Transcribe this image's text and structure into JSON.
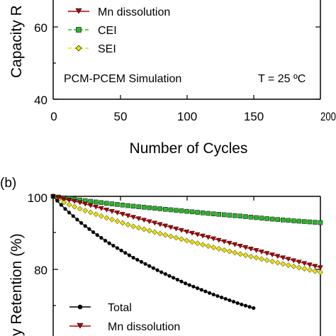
{
  "panel_a": {
    "y_axis_label_fragment": "Capacity R",
    "y_tick_labels": [
      "60",
      "40"
    ],
    "x_tick_labels": [
      "0",
      "50",
      "100",
      "150",
      "200"
    ],
    "x_axis_label": "Number of Cycles",
    "legend": [
      {
        "label": "Mn dissolution",
        "color": "#b00000",
        "marker": "down-triangle-icon",
        "line": "solid"
      },
      {
        "label": "CEI",
        "color": "#2bb52b",
        "marker": "square-icon",
        "line": "dashed"
      },
      {
        "label": "SEI",
        "color": "#e8e000",
        "marker": "diamond-icon",
        "line": "dashed"
      }
    ],
    "annotation_sim": "PCM-PCEM Simulation",
    "annotation_temp": "T = 25 ºC"
  },
  "panel_b": {
    "panel_label": "(b)",
    "y_axis_label_fragment": "y Retention (%)",
    "y_tick_labels": [
      "100",
      "80"
    ],
    "legend": [
      {
        "label": "Total",
        "color": "#000000",
        "marker": "circle-icon",
        "line": "solid"
      },
      {
        "label": "Mn dissolution",
        "color": "#b00000",
        "marker": "down-triangle-icon",
        "line": "solid"
      }
    ]
  },
  "chart_data": [
    {
      "type": "line",
      "panel": "a",
      "xlabel": "Number of Cycles",
      "ylabel": "Capacity R",
      "xlim": [
        0,
        200
      ],
      "ylim_visible": [
        40,
        68
      ],
      "x_ticks": [
        0,
        50,
        100,
        150,
        200
      ],
      "y_ticks": [
        40,
        60
      ],
      "series": [
        {
          "name": "Mn dissolution"
        },
        {
          "name": "CEI"
        },
        {
          "name": "SEI"
        }
      ],
      "annotations": [
        "PCM-PCEM Simulation",
        "T = 25 ºC"
      ]
    },
    {
      "type": "line",
      "panel": "b",
      "ylabel": "y Retention (%)",
      "xlim": [
        0,
        200
      ],
      "ylim_visible": [
        60,
        100
      ],
      "y_ticks": [
        80,
        100
      ],
      "series": [
        {
          "name": "Total",
          "color": "#000000",
          "x": [
            0,
            5,
            10,
            20,
            30,
            40,
            60,
            80,
            100,
            120,
            140,
            150
          ],
          "y": [
            100,
            98.0,
            96.2,
            93.0,
            90.2,
            87.6,
            83.2,
            79.4,
            76.0,
            73.1,
            70.5,
            69.4
          ]
        },
        {
          "name": "Mn dissolution",
          "color": "#b00000",
          "x": [
            0,
            20,
            40,
            60,
            80,
            100,
            120,
            140,
            160,
            180,
            200
          ],
          "y": [
            100,
            98.3,
            96.3,
            94.3,
            92.3,
            90.3,
            88.4,
            86.4,
            84.4,
            82.4,
            80.5
          ]
        },
        {
          "name": "CEI",
          "color": "#2bb52b",
          "x": [
            0,
            20,
            40,
            60,
            80,
            100,
            120,
            140,
            160,
            180,
            200
          ],
          "y": [
            100,
            99.0,
            98.1,
            97.3,
            96.6,
            95.9,
            95.2,
            94.6,
            93.9,
            93.3,
            92.8
          ]
        },
        {
          "name": "SEI",
          "color": "#e8e000",
          "x": [
            0,
            10,
            20,
            40,
            60,
            80,
            100,
            120,
            140,
            160,
            180,
            200
          ],
          "y": [
            100,
            98.0,
            96.6,
            94.1,
            91.8,
            89.8,
            87.9,
            86.0,
            84.2,
            82.5,
            80.8,
            79.2
          ]
        }
      ]
    }
  ]
}
